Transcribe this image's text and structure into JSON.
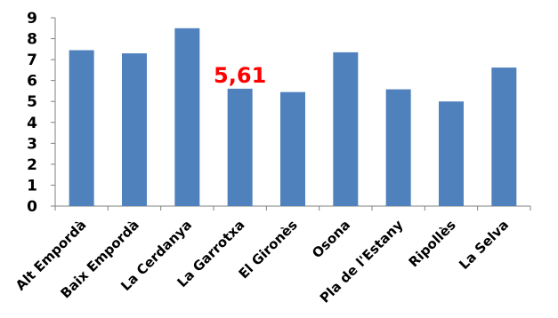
{
  "chart_data": {
    "type": "bar",
    "categories": [
      "Alt Empordà",
      "Baix Empordà",
      "La Cerdanya",
      "La Garrotxa",
      "El Gironès",
      "Osona",
      "Pla de l'Estany",
      "Ripollès",
      "La Selva"
    ],
    "values": [
      7.45,
      7.3,
      8.5,
      5.61,
      5.45,
      7.35,
      5.58,
      5.0,
      6.62
    ],
    "ylim": [
      0,
      9
    ],
    "yticks": [
      "0",
      "1",
      "2",
      "3",
      "4",
      "5",
      "6",
      "7",
      "8",
      "9"
    ],
    "grid": false,
    "legend": "none",
    "bar_color": "#4f81bd",
    "data_labels": [
      {
        "index": 3,
        "text": "5,61",
        "color": "#ff0000"
      }
    ]
  }
}
